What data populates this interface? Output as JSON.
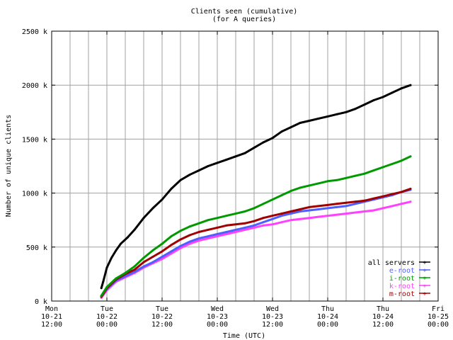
{
  "chart_data": {
    "type": "line",
    "title": "Clients seen (cumulative)",
    "subtitle": "(for A queries)",
    "xlabel": "Time (UTC)",
    "ylabel": "Number of unique clients",
    "y_unit": "k",
    "ylim": [
      0,
      2500
    ],
    "y_ticks": [
      0,
      500,
      1000,
      1500,
      2000,
      2500
    ],
    "y_tick_labels": [
      "0 k",
      "500 k",
      "1000 k",
      "1500 k",
      "2000 k",
      "2500 k"
    ],
    "xlim": [
      "10-21 12:00",
      "10-25 00:00"
    ],
    "x_ticks": [
      {
        "t": 0,
        "day": "Mon",
        "date": "10-21",
        "time": "12:00"
      },
      {
        "t": 12,
        "day": "Tue",
        "date": "10-22",
        "time": "00:00"
      },
      {
        "t": 24,
        "day": "Tue",
        "date": "10-22",
        "time": "12:00"
      },
      {
        "t": 36,
        "day": "Wed",
        "date": "10-23",
        "time": "00:00"
      },
      {
        "t": 48,
        "day": "Wed",
        "date": "10-23",
        "time": "12:00"
      },
      {
        "t": 60,
        "day": "Thu",
        "date": "10-24",
        "time": "00:00"
      },
      {
        "t": 72,
        "day": "Thu",
        "date": "10-24",
        "time": "12:00"
      },
      {
        "t": 84,
        "day": "Fri",
        "date": "10-25",
        "time": "00:00"
      }
    ],
    "grid": true,
    "legend_position": "bottom-right",
    "x_hours_since": "10-21 12:00",
    "series": [
      {
        "name": "all servers",
        "color": "#000000",
        "x": [
          10.8,
          11.2,
          12,
          13,
          14,
          15,
          16.5,
          18,
          20,
          22,
          24,
          26,
          28,
          30,
          32,
          34,
          36,
          38,
          40,
          42,
          44,
          46,
          48,
          50,
          52,
          54,
          56,
          58,
          60,
          62,
          64,
          66,
          68,
          70,
          72,
          74,
          76,
          78
        ],
        "values": [
          120,
          180,
          310,
          400,
          470,
          530,
          590,
          660,
          770,
          860,
          940,
          1040,
          1120,
          1170,
          1210,
          1250,
          1280,
          1310,
          1340,
          1370,
          1420,
          1470,
          1510,
          1570,
          1610,
          1650,
          1670,
          1690,
          1710,
          1730,
          1750,
          1780,
          1820,
          1860,
          1890,
          1930,
          1970,
          2000
        ]
      },
      {
        "name": "e-root",
        "color": "#4f5fff",
        "x": [
          10.8,
          12,
          14,
          16,
          18,
          20,
          22,
          24,
          26,
          28,
          30,
          32,
          34,
          36,
          38,
          40,
          42,
          44,
          46,
          48,
          50,
          52,
          54,
          56,
          58,
          60,
          62,
          64,
          66,
          68,
          70,
          72,
          74,
          76,
          78
        ],
        "values": [
          40,
          110,
          190,
          230,
          270,
          320,
          360,
          410,
          460,
          510,
          550,
          580,
          600,
          620,
          640,
          660,
          680,
          700,
          730,
          760,
          790,
          810,
          830,
          840,
          850,
          860,
          870,
          880,
          900,
          920,
          940,
          960,
          980,
          1010,
          1030
        ]
      },
      {
        "name": "i-root",
        "color": "#009a00",
        "x": [
          10.8,
          12,
          14,
          16,
          18,
          20,
          22,
          24,
          26,
          28,
          30,
          32,
          34,
          36,
          38,
          40,
          42,
          44,
          46,
          48,
          50,
          52,
          54,
          56,
          58,
          60,
          62,
          64,
          66,
          68,
          70,
          72,
          74,
          76,
          78
        ],
        "values": [
          50,
          130,
          210,
          260,
          320,
          400,
          470,
          530,
          600,
          650,
          690,
          720,
          750,
          770,
          790,
          810,
          830,
          860,
          900,
          940,
          980,
          1020,
          1050,
          1070,
          1090,
          1110,
          1120,
          1140,
          1160,
          1180,
          1210,
          1240,
          1270,
          1300,
          1340
        ]
      },
      {
        "name": "k-root",
        "color": "#ff40ff",
        "x": [
          10.8,
          12,
          14,
          16,
          18,
          20,
          22,
          24,
          26,
          28,
          30,
          32,
          34,
          36,
          38,
          40,
          42,
          44,
          46,
          48,
          50,
          52,
          54,
          56,
          58,
          60,
          62,
          64,
          66,
          68,
          70,
          72,
          74,
          76,
          78
        ],
        "values": [
          30,
          100,
          180,
          220,
          260,
          310,
          350,
          390,
          440,
          490,
          530,
          560,
          580,
          600,
          620,
          640,
          660,
          680,
          700,
          710,
          730,
          750,
          760,
          770,
          780,
          790,
          800,
          810,
          820,
          830,
          840,
          860,
          880,
          900,
          920
        ]
      },
      {
        "name": "m-root",
        "color": "#a00000",
        "x": [
          10.8,
          12,
          14,
          16,
          18,
          20,
          22,
          24,
          26,
          28,
          30,
          32,
          34,
          36,
          38,
          40,
          42,
          44,
          46,
          48,
          50,
          52,
          54,
          56,
          58,
          60,
          62,
          64,
          66,
          68,
          70,
          72,
          74,
          76,
          78
        ],
        "values": [
          40,
          120,
          200,
          250,
          290,
          360,
          410,
          460,
          520,
          570,
          610,
          640,
          660,
          680,
          700,
          710,
          720,
          740,
          770,
          790,
          810,
          830,
          850,
          870,
          880,
          890,
          900,
          910,
          920,
          930,
          950,
          970,
          990,
          1010,
          1040
        ]
      }
    ]
  }
}
